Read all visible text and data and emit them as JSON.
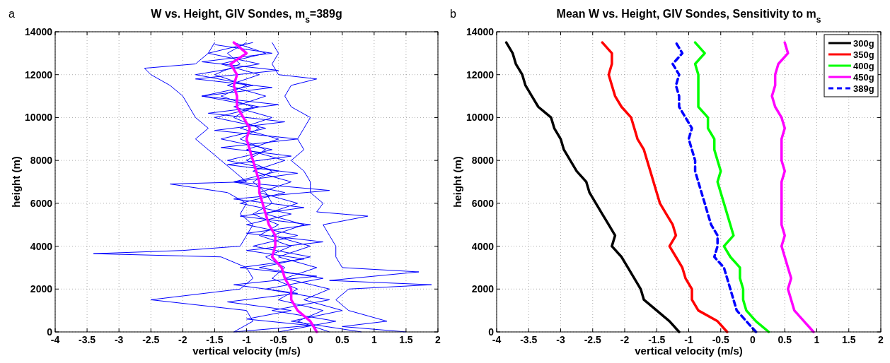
{
  "chart_data": [
    {
      "type": "line",
      "title": "W vs. Height, GIV Sondes, m$_{s}$=389g",
      "xlabel": "vertical velocity (m/s)",
      "ylabel": "height (m)",
      "xlim": [
        -4,
        2
      ],
      "ylim": [
        0,
        14000
      ],
      "xticks": [
        -4,
        -3.5,
        -3,
        -2.5,
        -2,
        -1.5,
        -1,
        -0.5,
        0,
        0.5,
        1,
        1.5,
        2
      ],
      "yticks": [
        0,
        2000,
        4000,
        6000,
        8000,
        10000,
        12000,
        14000
      ],
      "grid": true,
      "legend": false,
      "annotations": [
        "a"
      ],
      "series": [
        {
          "color": "#0000ff",
          "x": [
            -1.2,
            -0.9,
            -1.0,
            -2.5,
            -1.1,
            -0.9,
            -1.0,
            -1.4,
            -3.4,
            -2.0,
            -1.1,
            -1.0,
            -0.9,
            -1.1,
            -1.0,
            -1.3,
            -2.2,
            -1.0,
            -1.2,
            -1.4,
            -1.6,
            -1.8,
            -1.6,
            -1.8,
            -1.9,
            -2.0,
            -2.2,
            -2.5,
            -2.6,
            -1.8,
            -1.6,
            -1.5
          ],
          "values": [
            0,
            500,
            1000,
            1500,
            2000,
            2500,
            3000,
            3500,
            3650,
            3800,
            4000,
            4500,
            5000,
            5500,
            6000,
            6500,
            6900,
            7000,
            7500,
            8000,
            8500,
            9000,
            9500,
            10000,
            10500,
            11000,
            11500,
            12000,
            12300,
            12500,
            13000,
            13500
          ]
        },
        {
          "color": "#0000ff",
          "x": [
            1.5,
            0.5,
            1.2,
            0.6,
            0.4,
            0.6,
            1.9,
            0.3,
            1.7,
            0.5,
            0.4,
            0.4,
            0.3,
            0.2,
            0.9,
            0.1,
            0.2,
            0.0,
            0.0,
            -0.1,
            -0.3,
            -0.1,
            -0.2,
            -0.1,
            0.0,
            -0.3,
            -0.4,
            -0.3,
            0.1,
            -0.5,
            -0.6,
            -0.5,
            -0.6
          ],
          "values": [
            0,
            250,
            500,
            1000,
            1500,
            2000,
            2200,
            2400,
            2800,
            3000,
            3500,
            4000,
            4500,
            5000,
            5400,
            5600,
            6000,
            6500,
            7000,
            7500,
            8000,
            8500,
            9000,
            9500,
            10000,
            10500,
            11000,
            11500,
            11800,
            12000,
            12500,
            13000,
            13500
          ]
        },
        {
          "color": "#0000ff",
          "x": [
            0.3,
            -0.2,
            0.2,
            -0.5,
            -0.2,
            -0.6,
            -0.4,
            -0.7,
            -0.3,
            -0.8,
            -0.5,
            -0.9,
            -0.6,
            -0.7,
            -0.9,
            -0.6,
            -1.0,
            -0.7,
            -1.1,
            -0.8,
            -1.2,
            -0.9,
            -1.4,
            -1.0,
            -1.5,
            -1.1,
            -1.3,
            -1.0
          ],
          "values": [
            0,
            500,
            1000,
            1500,
            2000,
            2500,
            3000,
            3500,
            4000,
            4500,
            5000,
            5500,
            6000,
            6500,
            7000,
            7500,
            8000,
            8500,
            9000,
            9500,
            10000,
            10500,
            11000,
            11500,
            12000,
            12500,
            13000,
            13500
          ]
        },
        {
          "color": "#0000ff",
          "x": [
            -0.5,
            0.4,
            -0.6,
            0.3,
            -0.7,
            0.2,
            -0.8,
            0.0,
            -0.9,
            -0.2,
            -1.0,
            -0.3,
            -1.1,
            -0.4,
            -1.2,
            -0.5,
            -1.3,
            -0.6,
            -1.4,
            -0.7,
            -1.5,
            -0.8,
            -1.7,
            -0.9,
            -1.8,
            -0.8,
            -1.6,
            -0.9
          ],
          "values": [
            0,
            500,
            1000,
            1500,
            2000,
            2500,
            3000,
            3500,
            4000,
            4500,
            5000,
            5500,
            6000,
            6500,
            7000,
            7500,
            8000,
            8500,
            9000,
            9500,
            10000,
            10500,
            11000,
            11500,
            12000,
            12500,
            13000,
            13500
          ]
        },
        {
          "color": "#0000ff",
          "x": [
            0.8,
            -0.3,
            0.5,
            -0.1,
            0.3,
            -0.4,
            0.1,
            -0.5,
            0.0,
            -0.6,
            -0.1,
            -0.7,
            -0.2,
            -0.8,
            -0.3,
            -0.9,
            -0.4,
            -1.0,
            -0.5,
            -1.1,
            -0.6,
            -1.2,
            -0.7,
            -1.3,
            -0.8,
            -1.4,
            -0.7,
            -1.2
          ],
          "values": [
            0,
            500,
            1000,
            1500,
            2000,
            2500,
            3000,
            3500,
            4000,
            4500,
            5000,
            5500,
            6000,
            6500,
            7000,
            7500,
            8000,
            8500,
            9000,
            9500,
            10000,
            10500,
            11000,
            11500,
            12000,
            12500,
            13000,
            13500
          ]
        },
        {
          "color": "#0000ff",
          "x": [
            -1.2,
            0.0,
            -1.0,
            -0.3,
            -1.3,
            -0.2,
            -1.2,
            0.1,
            -1.1,
            -0.1,
            -1.0,
            0.2,
            -1.0,
            0.0,
            -1.1,
            -0.1,
            -1.2,
            0.3,
            -1.2,
            -0.2,
            -1.3,
            -0.3,
            -1.4,
            -0.2,
            -1.5,
            -0.4,
            -1.6,
            -0.5,
            -1.7,
            -0.6,
            -1.8,
            -0.5,
            -1.7,
            -0.6,
            -1.5
          ],
          "values": [
            0,
            300,
            600,
            1000,
            1400,
            1800,
            2200,
            2600,
            3000,
            3400,
            3800,
            4200,
            4600,
            5000,
            5400,
            5800,
            6200,
            6600,
            7000,
            7400,
            7800,
            8200,
            8600,
            9000,
            9400,
            9800,
            10200,
            10600,
            11000,
            11400,
            11800,
            12200,
            12600,
            13000,
            13400
          ]
        },
        {
          "color": "#ff00ff",
          "x": [
            0.1,
            0.0,
            -0.2,
            -0.3,
            -0.3,
            -0.4,
            -0.45,
            -0.6,
            -0.55,
            -0.55,
            -0.65,
            -0.7,
            -0.75,
            -0.8,
            -0.8,
            -0.85,
            -0.9,
            -0.95,
            -1.0,
            -0.95,
            -1.05,
            -1.15,
            -1.15,
            -1.2,
            -1.15,
            -1.25,
            -1.0,
            -1.2
          ],
          "values": [
            0,
            500,
            1000,
            1500,
            2000,
            2500,
            3000,
            3500,
            4000,
            4500,
            5000,
            5500,
            6000,
            6500,
            7000,
            7500,
            8000,
            8500,
            9000,
            9500,
            10000,
            10500,
            11000,
            11500,
            12000,
            12500,
            13000,
            13500
          ]
        }
      ]
    },
    {
      "type": "line",
      "title": "Mean W vs. Height, GIV Sondes, Sensitivity to m$_{s}$",
      "xlabel": "vertical velocity (m/s)",
      "ylabel": "height (m)",
      "xlim": [
        -4,
        2
      ],
      "ylim": [
        0,
        14000
      ],
      "xticks": [
        -4,
        -3.5,
        -3,
        -2.5,
        -2,
        -1.5,
        -1,
        -0.5,
        0,
        0.5,
        1,
        1.5,
        2
      ],
      "yticks": [
        0,
        2000,
        4000,
        6000,
        8000,
        10000,
        12000,
        14000
      ],
      "grid": true,
      "legend": "top right",
      "annotations": [
        "b"
      ],
      "series": [
        {
          "name": "300g",
          "color": "#000000",
          "x": [
            -1.15,
            -1.3,
            -1.5,
            -1.7,
            -1.75,
            -1.85,
            -1.95,
            -2.05,
            -2.2,
            -2.15,
            -2.25,
            -2.35,
            -2.45,
            -2.55,
            -2.6,
            -2.75,
            -2.85,
            -2.95,
            -3.0,
            -3.1,
            -3.15,
            -3.35,
            -3.45,
            -3.55,
            -3.6,
            -3.7,
            -3.75,
            -3.85
          ],
          "values": [
            0,
            500,
            1000,
            1500,
            2000,
            2500,
            3000,
            3500,
            4000,
            4500,
            5000,
            5500,
            6000,
            6500,
            7000,
            7500,
            8000,
            8500,
            9000,
            9500,
            10000,
            10500,
            11000,
            11500,
            12000,
            12500,
            13000,
            13500
          ]
        },
        {
          "name": "350g",
          "color": "#ff0000",
          "x": [
            -0.4,
            -0.55,
            -0.85,
            -0.95,
            -0.95,
            -1.05,
            -1.1,
            -1.2,
            -1.3,
            -1.2,
            -1.25,
            -1.35,
            -1.45,
            -1.5,
            -1.55,
            -1.6,
            -1.65,
            -1.7,
            -1.8,
            -1.85,
            -1.9,
            -2.05,
            -2.15,
            -2.2,
            -2.25,
            -2.2,
            -2.2,
            -2.35
          ],
          "values": [
            0,
            500,
            1000,
            1500,
            2000,
            2500,
            3000,
            3500,
            4000,
            4500,
            5000,
            5500,
            6000,
            6500,
            7000,
            7500,
            8000,
            8500,
            9000,
            9500,
            10000,
            10500,
            11000,
            11500,
            12000,
            12500,
            13000,
            13500
          ]
        },
        {
          "name": "400g",
          "color": "#00ff00",
          "x": [
            0.25,
            0.05,
            -0.1,
            -0.15,
            -0.15,
            -0.2,
            -0.2,
            -0.35,
            -0.45,
            -0.3,
            -0.35,
            -0.4,
            -0.45,
            -0.5,
            -0.55,
            -0.5,
            -0.55,
            -0.6,
            -0.6,
            -0.7,
            -0.7,
            -0.85,
            -0.85,
            -0.85,
            -0.85,
            -0.9,
            -0.75,
            -0.9
          ],
          "values": [
            0,
            500,
            1000,
            1500,
            2000,
            2500,
            3000,
            3500,
            4000,
            4500,
            5000,
            5500,
            6000,
            6500,
            7000,
            7500,
            8000,
            8500,
            9000,
            9500,
            10000,
            10500,
            11000,
            11500,
            12000,
            12500,
            13000,
            13500
          ]
        },
        {
          "name": "450g",
          "color": "#ff00ff",
          "x": [
            0.95,
            0.8,
            0.65,
            0.6,
            0.55,
            0.6,
            0.55,
            0.5,
            0.45,
            0.5,
            0.45,
            0.45,
            0.45,
            0.45,
            0.45,
            0.5,
            0.45,
            0.45,
            0.45,
            0.5,
            0.45,
            0.35,
            0.3,
            0.35,
            0.35,
            0.4,
            0.55,
            0.5
          ],
          "values": [
            0,
            500,
            1000,
            1500,
            2000,
            2500,
            3000,
            3500,
            4000,
            4500,
            5000,
            5500,
            6000,
            6500,
            7000,
            7500,
            8000,
            8500,
            9000,
            9500,
            10000,
            10500,
            11000,
            11500,
            12000,
            12500,
            13000,
            13500
          ]
        },
        {
          "name": "389g",
          "color": "#0000ff",
          "line_style": "dashed",
          "x": [
            0.05,
            -0.1,
            -0.25,
            -0.3,
            -0.35,
            -0.4,
            -0.45,
            -0.6,
            -0.55,
            -0.55,
            -0.65,
            -0.7,
            -0.75,
            -0.8,
            -0.85,
            -0.9,
            -0.9,
            -0.95,
            -1.0,
            -0.95,
            -1.05,
            -1.15,
            -1.15,
            -1.2,
            -1.15,
            -1.25,
            -1.1,
            -1.2
          ],
          "values": [
            0,
            500,
            1000,
            1500,
            2000,
            2500,
            3000,
            3500,
            4000,
            4500,
            5000,
            5500,
            6000,
            6500,
            7000,
            7500,
            8000,
            8500,
            9000,
            9500,
            10000,
            10500,
            11000,
            11500,
            12000,
            12500,
            13000,
            13500
          ]
        }
      ]
    }
  ]
}
